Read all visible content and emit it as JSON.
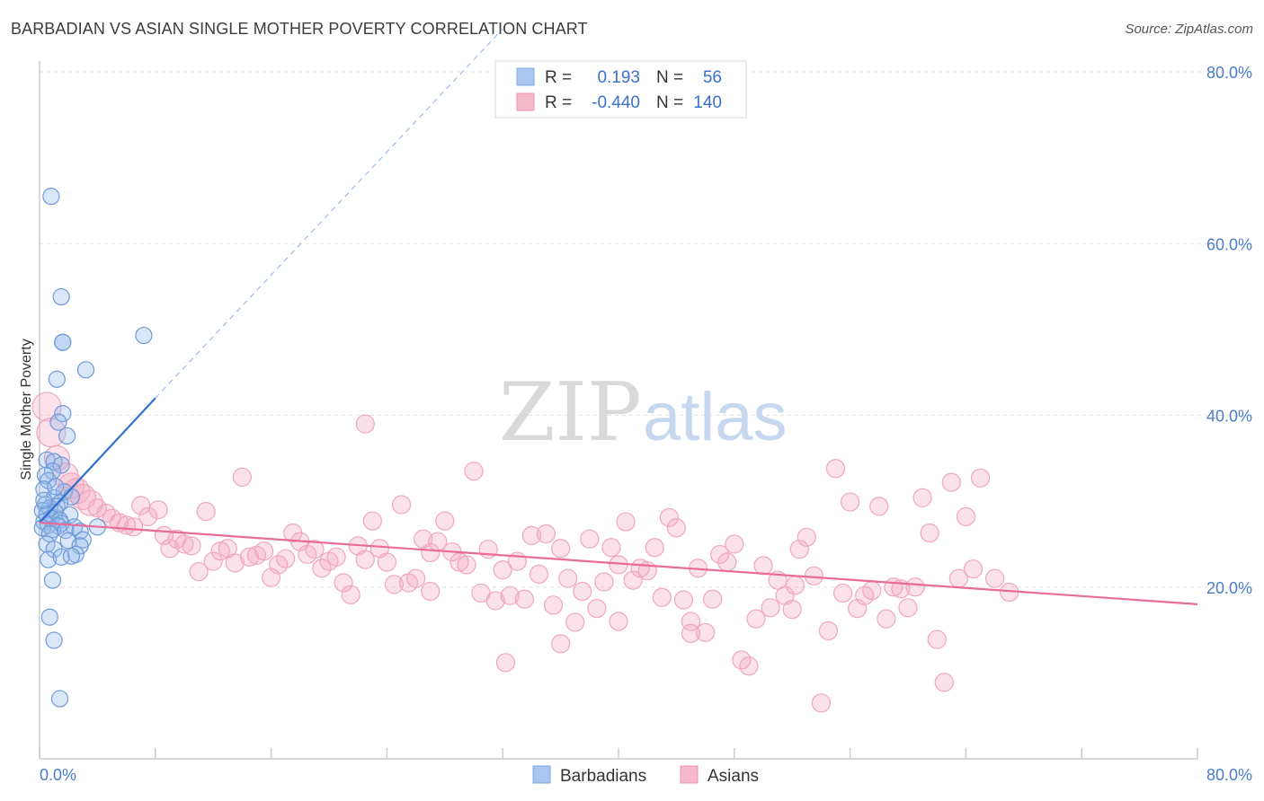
{
  "header": {
    "title": "BARBADIAN VS ASIAN SINGLE MOTHER POVERTY CORRELATION CHART",
    "source": "Source: ZipAtlas.com"
  },
  "watermark": {
    "part1": "ZIP",
    "part2": "atlas"
  },
  "stats_legend": {
    "rows": [
      {
        "r_label": "R =",
        "r_value": "0.193",
        "n_label": "N =",
        "n_value": "56",
        "color": "#a8c6f0"
      },
      {
        "r_label": "R =",
        "r_value": "-0.440",
        "n_label": "N =",
        "n_value": "140",
        "color": "#f6b9cb"
      }
    ]
  },
  "bottom_legend": [
    "Barbadians",
    "Asians"
  ],
  "chart_data": {
    "type": "scatter",
    "title": "BARBADIAN VS ASIAN SINGLE MOTHER POVERTY CORRELATION CHART",
    "xlabel": "",
    "ylabel": "Single Mother Poverty",
    "xlim": [
      0,
      80
    ],
    "ylim": [
      0,
      80
    ],
    "x_tick_labels": [
      "0.0%",
      "80.0%"
    ],
    "y_tick_labels": [
      "20.0%",
      "40.0%",
      "60.0%",
      "80.0%"
    ],
    "y_ticks": [
      20,
      40,
      60,
      80
    ],
    "grid": true,
    "legend_position": "top-center",
    "colors": {
      "Barbadians": "#5b8fd9",
      "Asians": "#ee8aaa",
      "blue_line": "#2f6fd0",
      "pink_line": "#e96b97"
    },
    "series": [
      {
        "name": "Barbadians",
        "r": 0.193,
        "n": 56,
        "trend": {
          "x0": 0,
          "y0": 27.5,
          "x1": 8,
          "y1": 42,
          "dashed_to_x": 32,
          "dashed_to_y": 85
        },
        "points": [
          [
            0.8,
            65.5
          ],
          [
            1.5,
            53.8
          ],
          [
            1.6,
            48.5
          ],
          [
            1.6,
            48.5
          ],
          [
            7.2,
            49.3
          ],
          [
            3.2,
            45.3
          ],
          [
            1.2,
            44.2
          ],
          [
            1.6,
            40.2
          ],
          [
            1.3,
            39.2
          ],
          [
            1.9,
            37.6
          ],
          [
            0.5,
            34.8
          ],
          [
            1.0,
            34.6
          ],
          [
            1.5,
            34.2
          ],
          [
            0.9,
            33.5
          ],
          [
            0.4,
            33.0
          ],
          [
            0.6,
            32.4
          ],
          [
            0.3,
            31.4
          ],
          [
            1.7,
            31.1
          ],
          [
            2.2,
            30.5
          ],
          [
            1.0,
            30.4
          ],
          [
            1.4,
            29.8
          ],
          [
            0.4,
            29.6
          ],
          [
            1.2,
            29.4
          ],
          [
            0.7,
            29.2
          ],
          [
            0.2,
            28.9
          ],
          [
            1.1,
            28.7
          ],
          [
            0.5,
            28.5
          ],
          [
            2.1,
            28.4
          ],
          [
            0.8,
            28.0
          ],
          [
            1.4,
            27.8
          ],
          [
            0.3,
            27.6
          ],
          [
            1.5,
            27.4
          ],
          [
            0.6,
            27.2
          ],
          [
            1.3,
            27.1
          ],
          [
            2.4,
            27.0
          ],
          [
            4.0,
            27.0
          ],
          [
            0.2,
            26.9
          ],
          [
            0.9,
            26.7
          ],
          [
            1.8,
            26.6
          ],
          [
            2.8,
            26.5
          ],
          [
            0.7,
            26.2
          ],
          [
            3.0,
            25.5
          ],
          [
            2.0,
            25.4
          ],
          [
            0.5,
            25.0
          ],
          [
            2.8,
            24.8
          ],
          [
            1.0,
            24.4
          ],
          [
            2.5,
            23.8
          ],
          [
            0.6,
            23.2
          ],
          [
            1.5,
            23.5
          ],
          [
            2.2,
            23.6
          ],
          [
            0.9,
            20.8
          ],
          [
            0.7,
            16.5
          ],
          [
            1.0,
            13.8
          ],
          [
            1.4,
            7.0
          ],
          [
            0.3,
            30.1
          ],
          [
            1.1,
            31.7
          ]
        ]
      },
      {
        "name": "Asians",
        "r": -0.44,
        "n": 140,
        "trend": {
          "x0": 0,
          "y0": 27.5,
          "x1": 80,
          "y1": 18.0
        },
        "points": [
          [
            0.5,
            41.0
          ],
          [
            0.8,
            38.0
          ],
          [
            1.2,
            35.0
          ],
          [
            1.8,
            33.0
          ],
          [
            2.2,
            31.8
          ],
          [
            2.6,
            31.2
          ],
          [
            3.0,
            30.5
          ],
          [
            3.5,
            29.8
          ],
          [
            4.0,
            29.2
          ],
          [
            4.6,
            28.6
          ],
          [
            5.0,
            28.0
          ],
          [
            5.5,
            27.5
          ],
          [
            6.0,
            27.2
          ],
          [
            6.5,
            27.0
          ],
          [
            7.0,
            29.5
          ],
          [
            7.5,
            28.2
          ],
          [
            8.2,
            29.0
          ],
          [
            8.6,
            26.0
          ],
          [
            9.0,
            24.5
          ],
          [
            9.5,
            25.6
          ],
          [
            10.0,
            25.0
          ],
          [
            10.5,
            24.8
          ],
          [
            11.0,
            21.8
          ],
          [
            11.5,
            28.8
          ],
          [
            12.0,
            23.0
          ],
          [
            12.5,
            24.2
          ],
          [
            13.0,
            24.5
          ],
          [
            13.5,
            22.8
          ],
          [
            14.0,
            32.8
          ],
          [
            14.5,
            23.5
          ],
          [
            15.0,
            23.7
          ],
          [
            15.5,
            24.2
          ],
          [
            16.0,
            21.1
          ],
          [
            16.5,
            22.6
          ],
          [
            17.0,
            23.3
          ],
          [
            17.5,
            26.3
          ],
          [
            18.0,
            25.3
          ],
          [
            18.5,
            23.8
          ],
          [
            19.0,
            24.4
          ],
          [
            19.5,
            22.2
          ],
          [
            20.0,
            23.0
          ],
          [
            20.5,
            23.5
          ],
          [
            21.0,
            20.5
          ],
          [
            21.5,
            19.1
          ],
          [
            22.0,
            24.8
          ],
          [
            22.5,
            23.2
          ],
          [
            23.0,
            27.7
          ],
          [
            23.5,
            24.5
          ],
          [
            24.0,
            22.9
          ],
          [
            24.5,
            20.3
          ],
          [
            25.0,
            29.6
          ],
          [
            25.5,
            20.5
          ],
          [
            26.0,
            21.0
          ],
          [
            26.5,
            25.6
          ],
          [
            27.0,
            19.5
          ],
          [
            27.5,
            25.3
          ],
          [
            28.0,
            27.7
          ],
          [
            28.5,
            24.1
          ],
          [
            29.0,
            22.9
          ],
          [
            29.5,
            22.6
          ],
          [
            30.0,
            33.5
          ],
          [
            30.5,
            19.3
          ],
          [
            31.0,
            24.4
          ],
          [
            31.5,
            18.4
          ],
          [
            32.0,
            22.0
          ],
          [
            32.5,
            19.0
          ],
          [
            33.0,
            23.0
          ],
          [
            33.5,
            18.6
          ],
          [
            34.0,
            26.0
          ],
          [
            34.5,
            21.5
          ],
          [
            35.0,
            26.2
          ],
          [
            35.5,
            17.9
          ],
          [
            36.0,
            24.5
          ],
          [
            36.5,
            21.0
          ],
          [
            37.0,
            15.9
          ],
          [
            37.5,
            19.5
          ],
          [
            38.0,
            25.6
          ],
          [
            38.5,
            17.5
          ],
          [
            39.0,
            20.6
          ],
          [
            39.5,
            24.6
          ],
          [
            40.0,
            16.0
          ],
          [
            40.5,
            27.6
          ],
          [
            41.0,
            20.8
          ],
          [
            41.5,
            22.2
          ],
          [
            42.0,
            21.9
          ],
          [
            42.5,
            24.6
          ],
          [
            43.0,
            18.8
          ],
          [
            43.5,
            28.1
          ],
          [
            44.0,
            26.9
          ],
          [
            44.5,
            18.5
          ],
          [
            45.0,
            14.6
          ],
          [
            45.5,
            22.2
          ],
          [
            46.0,
            14.7
          ],
          [
            46.5,
            18.6
          ],
          [
            47.0,
            23.8
          ],
          [
            47.5,
            22.9
          ],
          [
            48.0,
            25.0
          ],
          [
            48.5,
            11.5
          ],
          [
            49.0,
            10.8
          ],
          [
            49.5,
            16.3
          ],
          [
            50.0,
            22.5
          ],
          [
            50.5,
            17.6
          ],
          [
            51.0,
            20.8
          ],
          [
            51.5,
            19.0
          ],
          [
            52.0,
            17.4
          ],
          [
            52.5,
            24.4
          ],
          [
            53.0,
            25.8
          ],
          [
            53.5,
            21.3
          ],
          [
            54.0,
            6.5
          ],
          [
            54.5,
            14.9
          ],
          [
            55.0,
            33.8
          ],
          [
            55.5,
            19.3
          ],
          [
            56.0,
            29.9
          ],
          [
            56.5,
            17.5
          ],
          [
            57.0,
            19.0
          ],
          [
            57.5,
            19.6
          ],
          [
            58.0,
            29.4
          ],
          [
            58.5,
            16.3
          ],
          [
            59.0,
            20.0
          ],
          [
            59.5,
            19.8
          ],
          [
            60.0,
            17.6
          ],
          [
            60.5,
            20.0
          ],
          [
            61.0,
            30.4
          ],
          [
            61.5,
            26.3
          ],
          [
            62.0,
            13.9
          ],
          [
            62.5,
            8.9
          ],
          [
            63.0,
            32.2
          ],
          [
            63.5,
            21.0
          ],
          [
            64.0,
            28.2
          ],
          [
            64.5,
            22.1
          ],
          [
            65.0,
            32.7
          ],
          [
            66.0,
            21.0
          ],
          [
            67.0,
            19.4
          ],
          [
            22.5,
            39.0
          ],
          [
            32.2,
            11.2
          ],
          [
            36.0,
            13.4
          ],
          [
            45.0,
            16.0
          ],
          [
            27.0,
            24.0
          ],
          [
            40.0,
            22.6
          ],
          [
            52.2,
            20.2
          ]
        ]
      }
    ]
  }
}
